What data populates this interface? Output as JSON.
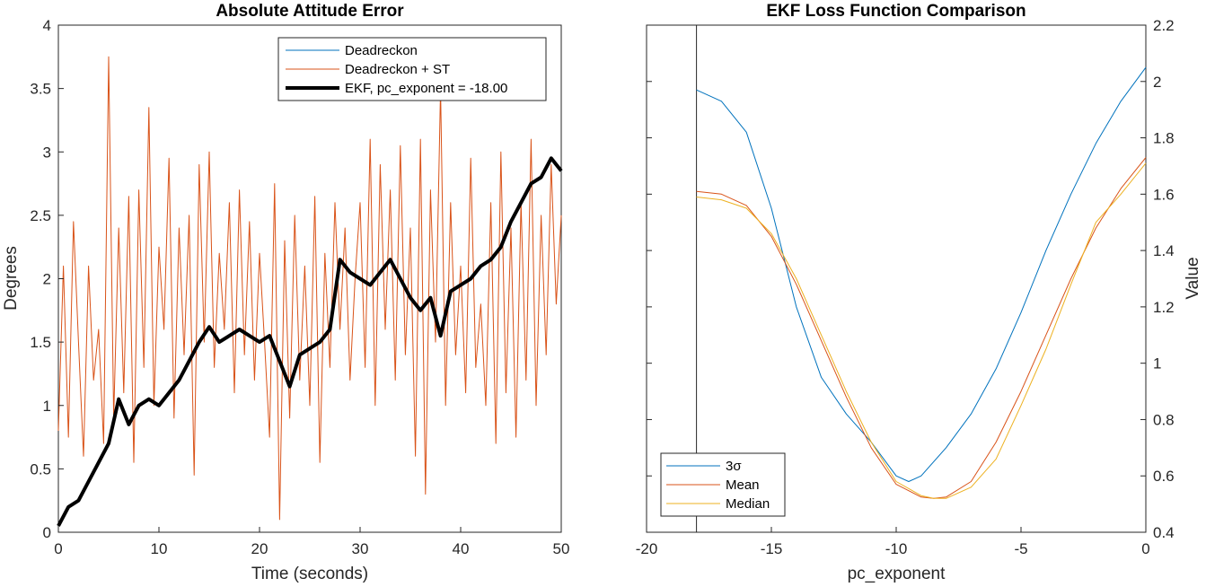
{
  "chart_data": [
    {
      "type": "line",
      "title": "Absolute Attitude Error",
      "xlabel": "Time (seconds)",
      "ylabel": "Degrees",
      "xlim": [
        0,
        50
      ],
      "ylim": [
        0,
        4
      ],
      "xticks": [
        "0",
        "10",
        "20",
        "30",
        "40",
        "50"
      ],
      "yticks": [
        "0",
        "0.5",
        "1",
        "1.5",
        "2",
        "2.5",
        "3",
        "3.5",
        "4"
      ],
      "grid": false,
      "legend_position": "top-right",
      "series": [
        {
          "name": "Deadreckon",
          "color": "#0072BD",
          "x": [
            0,
            1,
            2,
            3,
            4,
            5,
            6,
            7,
            8,
            9,
            10,
            11,
            12,
            13,
            14,
            15,
            16,
            17,
            18,
            19,
            20,
            21,
            22,
            23,
            24,
            25,
            26,
            27,
            28,
            29,
            30,
            31,
            32,
            33,
            34,
            35,
            36,
            37,
            38,
            39,
            40,
            41,
            42,
            43,
            44,
            45,
            46,
            47,
            48,
            49,
            50
          ],
          "y": [
            0.05,
            0.2,
            0.25,
            0.4,
            0.55,
            0.7,
            1.05,
            0.85,
            1.0,
            1.05,
            1.0,
            1.1,
            1.2,
            1.35,
            1.5,
            1.62,
            1.5,
            1.55,
            1.6,
            1.55,
            1.5,
            1.55,
            1.35,
            1.15,
            1.4,
            1.45,
            1.5,
            1.6,
            2.15,
            2.05,
            2.0,
            1.95,
            2.05,
            2.15,
            2.0,
            1.85,
            1.75,
            1.85,
            1.55,
            1.9,
            1.95,
            2.0,
            2.1,
            2.15,
            2.25,
            2.45,
            2.6,
            2.75,
            2.8,
            2.95,
            2.85
          ]
        },
        {
          "name": "Deadreckon + ST",
          "color": "#D95319",
          "x": [
            0,
            0.5,
            1,
            1.5,
            2,
            2.5,
            3,
            3.5,
            4,
            4.5,
            5,
            5.5,
            6,
            6.5,
            7,
            7.5,
            8,
            8.5,
            9,
            9.5,
            10,
            10.5,
            11,
            11.5,
            12,
            12.5,
            13,
            13.5,
            14,
            14.5,
            15,
            15.5,
            16,
            16.5,
            17,
            17.5,
            18,
            18.5,
            19,
            19.5,
            20,
            20.5,
            21,
            21.5,
            22,
            22.5,
            23,
            23.5,
            24,
            24.5,
            25,
            25.5,
            26,
            26.5,
            27,
            27.5,
            28,
            28.5,
            29,
            29.5,
            30,
            30.5,
            31,
            31.5,
            32,
            32.5,
            33,
            33.5,
            34,
            34.5,
            35,
            35.5,
            36,
            36.5,
            37,
            37.5,
            38,
            38.5,
            39,
            39.5,
            40,
            40.5,
            41,
            41.5,
            42,
            42.5,
            43,
            43.5,
            44,
            44.5,
            45,
            45.5,
            46,
            46.5,
            47,
            47.5,
            48,
            48.5,
            49,
            49.5,
            50
          ],
          "y": [
            0.8,
            2.1,
            0.75,
            2.45,
            1.5,
            0.6,
            2.1,
            1.2,
            1.6,
            0.7,
            3.75,
            0.9,
            2.4,
            1.1,
            2.65,
            0.55,
            2.7,
            1.3,
            3.35,
            1.0,
            2.25,
            1.6,
            2.95,
            0.9,
            2.4,
            1.4,
            2.5,
            0.45,
            2.9,
            1.5,
            3.0,
            1.3,
            2.2,
            1.6,
            2.6,
            1.1,
            2.7,
            1.4,
            2.45,
            1.2,
            2.2,
            1.5,
            0.75,
            2.75,
            0.1,
            2.3,
            0.9,
            2.5,
            1.2,
            2.1,
            1.0,
            2.65,
            0.55,
            2.2,
            1.3,
            2.6,
            1.6,
            2.4,
            1.2,
            2.0,
            2.6,
            1.3,
            3.1,
            1.0,
            2.9,
            1.6,
            2.7,
            1.2,
            3.05,
            1.4,
            2.4,
            0.6,
            3.1,
            0.3,
            2.7,
            1.5,
            3.5,
            1.0,
            2.6,
            1.4,
            2.1,
            1.1,
            2.95,
            1.3,
            1.8,
            1.0,
            2.6,
            0.7,
            3.0,
            1.1,
            2.4,
            0.75,
            2.6,
            1.2,
            3.1,
            1.0,
            2.5,
            1.4,
            2.9,
            1.8,
            2.5
          ]
        },
        {
          "name": "EKF, pc_exponent = -18.00",
          "color": "#000000",
          "x": [
            0,
            1,
            2,
            3,
            4,
            5,
            6,
            7,
            8,
            9,
            10,
            11,
            12,
            13,
            14,
            15,
            16,
            17,
            18,
            19,
            20,
            21,
            22,
            23,
            24,
            25,
            26,
            27,
            28,
            29,
            30,
            31,
            32,
            33,
            34,
            35,
            36,
            37,
            38,
            39,
            40,
            41,
            42,
            43,
            44,
            45,
            46,
            47,
            48,
            49,
            50
          ],
          "y": [
            0.05,
            0.2,
            0.25,
            0.4,
            0.55,
            0.7,
            1.05,
            0.85,
            1.0,
            1.05,
            1.0,
            1.1,
            1.2,
            1.35,
            1.5,
            1.62,
            1.5,
            1.55,
            1.6,
            1.55,
            1.5,
            1.55,
            1.35,
            1.15,
            1.4,
            1.45,
            1.5,
            1.6,
            2.15,
            2.05,
            2.0,
            1.95,
            2.05,
            2.15,
            2.0,
            1.85,
            1.75,
            1.85,
            1.55,
            1.9,
            1.95,
            2.0,
            2.1,
            2.15,
            2.25,
            2.45,
            2.6,
            2.75,
            2.8,
            2.95,
            2.85
          ]
        }
      ]
    },
    {
      "type": "line",
      "title": "EKF Loss Function Comparison",
      "xlabel": "pc_exponent",
      "ylabel": "Value",
      "xlim": [
        -20,
        0
      ],
      "ylim": [
        0.4,
        2.2
      ],
      "xticks": [
        "-20",
        "-15",
        "-10",
        "-5",
        "0"
      ],
      "yticks": [
        "0.4",
        "0.6",
        "0.8",
        "1",
        "1.2",
        "1.4",
        "1.6",
        "1.8",
        "2",
        "2.2"
      ],
      "y_axis_side": "right",
      "vertical_reference_line_x": -18,
      "grid": false,
      "legend_position": "bottom-left",
      "series": [
        {
          "name": "3σ",
          "color": "#0072BD",
          "x": [
            -18,
            -17,
            -16,
            -15,
            -14,
            -13,
            -12,
            -11,
            -10,
            -9.5,
            -9,
            -8,
            -7,
            -6,
            -5,
            -4,
            -3,
            -2,
            -1,
            0
          ],
          "y": [
            1.97,
            1.93,
            1.82,
            1.55,
            1.2,
            0.95,
            0.82,
            0.72,
            0.6,
            0.58,
            0.6,
            0.7,
            0.82,
            0.98,
            1.18,
            1.4,
            1.6,
            1.78,
            1.93,
            2.05
          ]
        },
        {
          "name": "Mean",
          "color": "#D95319",
          "x": [
            -18,
            -17,
            -16,
            -15,
            -14,
            -13,
            -12,
            -11,
            -10,
            -9,
            -8.5,
            -8,
            -7,
            -6,
            -5,
            -4,
            -3,
            -2,
            -1,
            0
          ],
          "y": [
            1.61,
            1.6,
            1.56,
            1.45,
            1.28,
            1.08,
            0.88,
            0.7,
            0.57,
            0.525,
            0.52,
            0.525,
            0.58,
            0.72,
            0.9,
            1.1,
            1.3,
            1.48,
            1.62,
            1.73
          ]
        },
        {
          "name": "Median",
          "color": "#EDB120",
          "x": [
            -18,
            -17,
            -16,
            -15,
            -14,
            -13,
            -12,
            -11,
            -10,
            -9,
            -8.5,
            -8,
            -7,
            -6,
            -5,
            -4,
            -3,
            -2,
            -1,
            0
          ],
          "y": [
            1.59,
            1.58,
            1.55,
            1.46,
            1.3,
            1.1,
            0.9,
            0.72,
            0.58,
            0.53,
            0.52,
            0.52,
            0.56,
            0.66,
            0.85,
            1.05,
            1.28,
            1.5,
            1.6,
            1.71
          ]
        }
      ]
    }
  ]
}
